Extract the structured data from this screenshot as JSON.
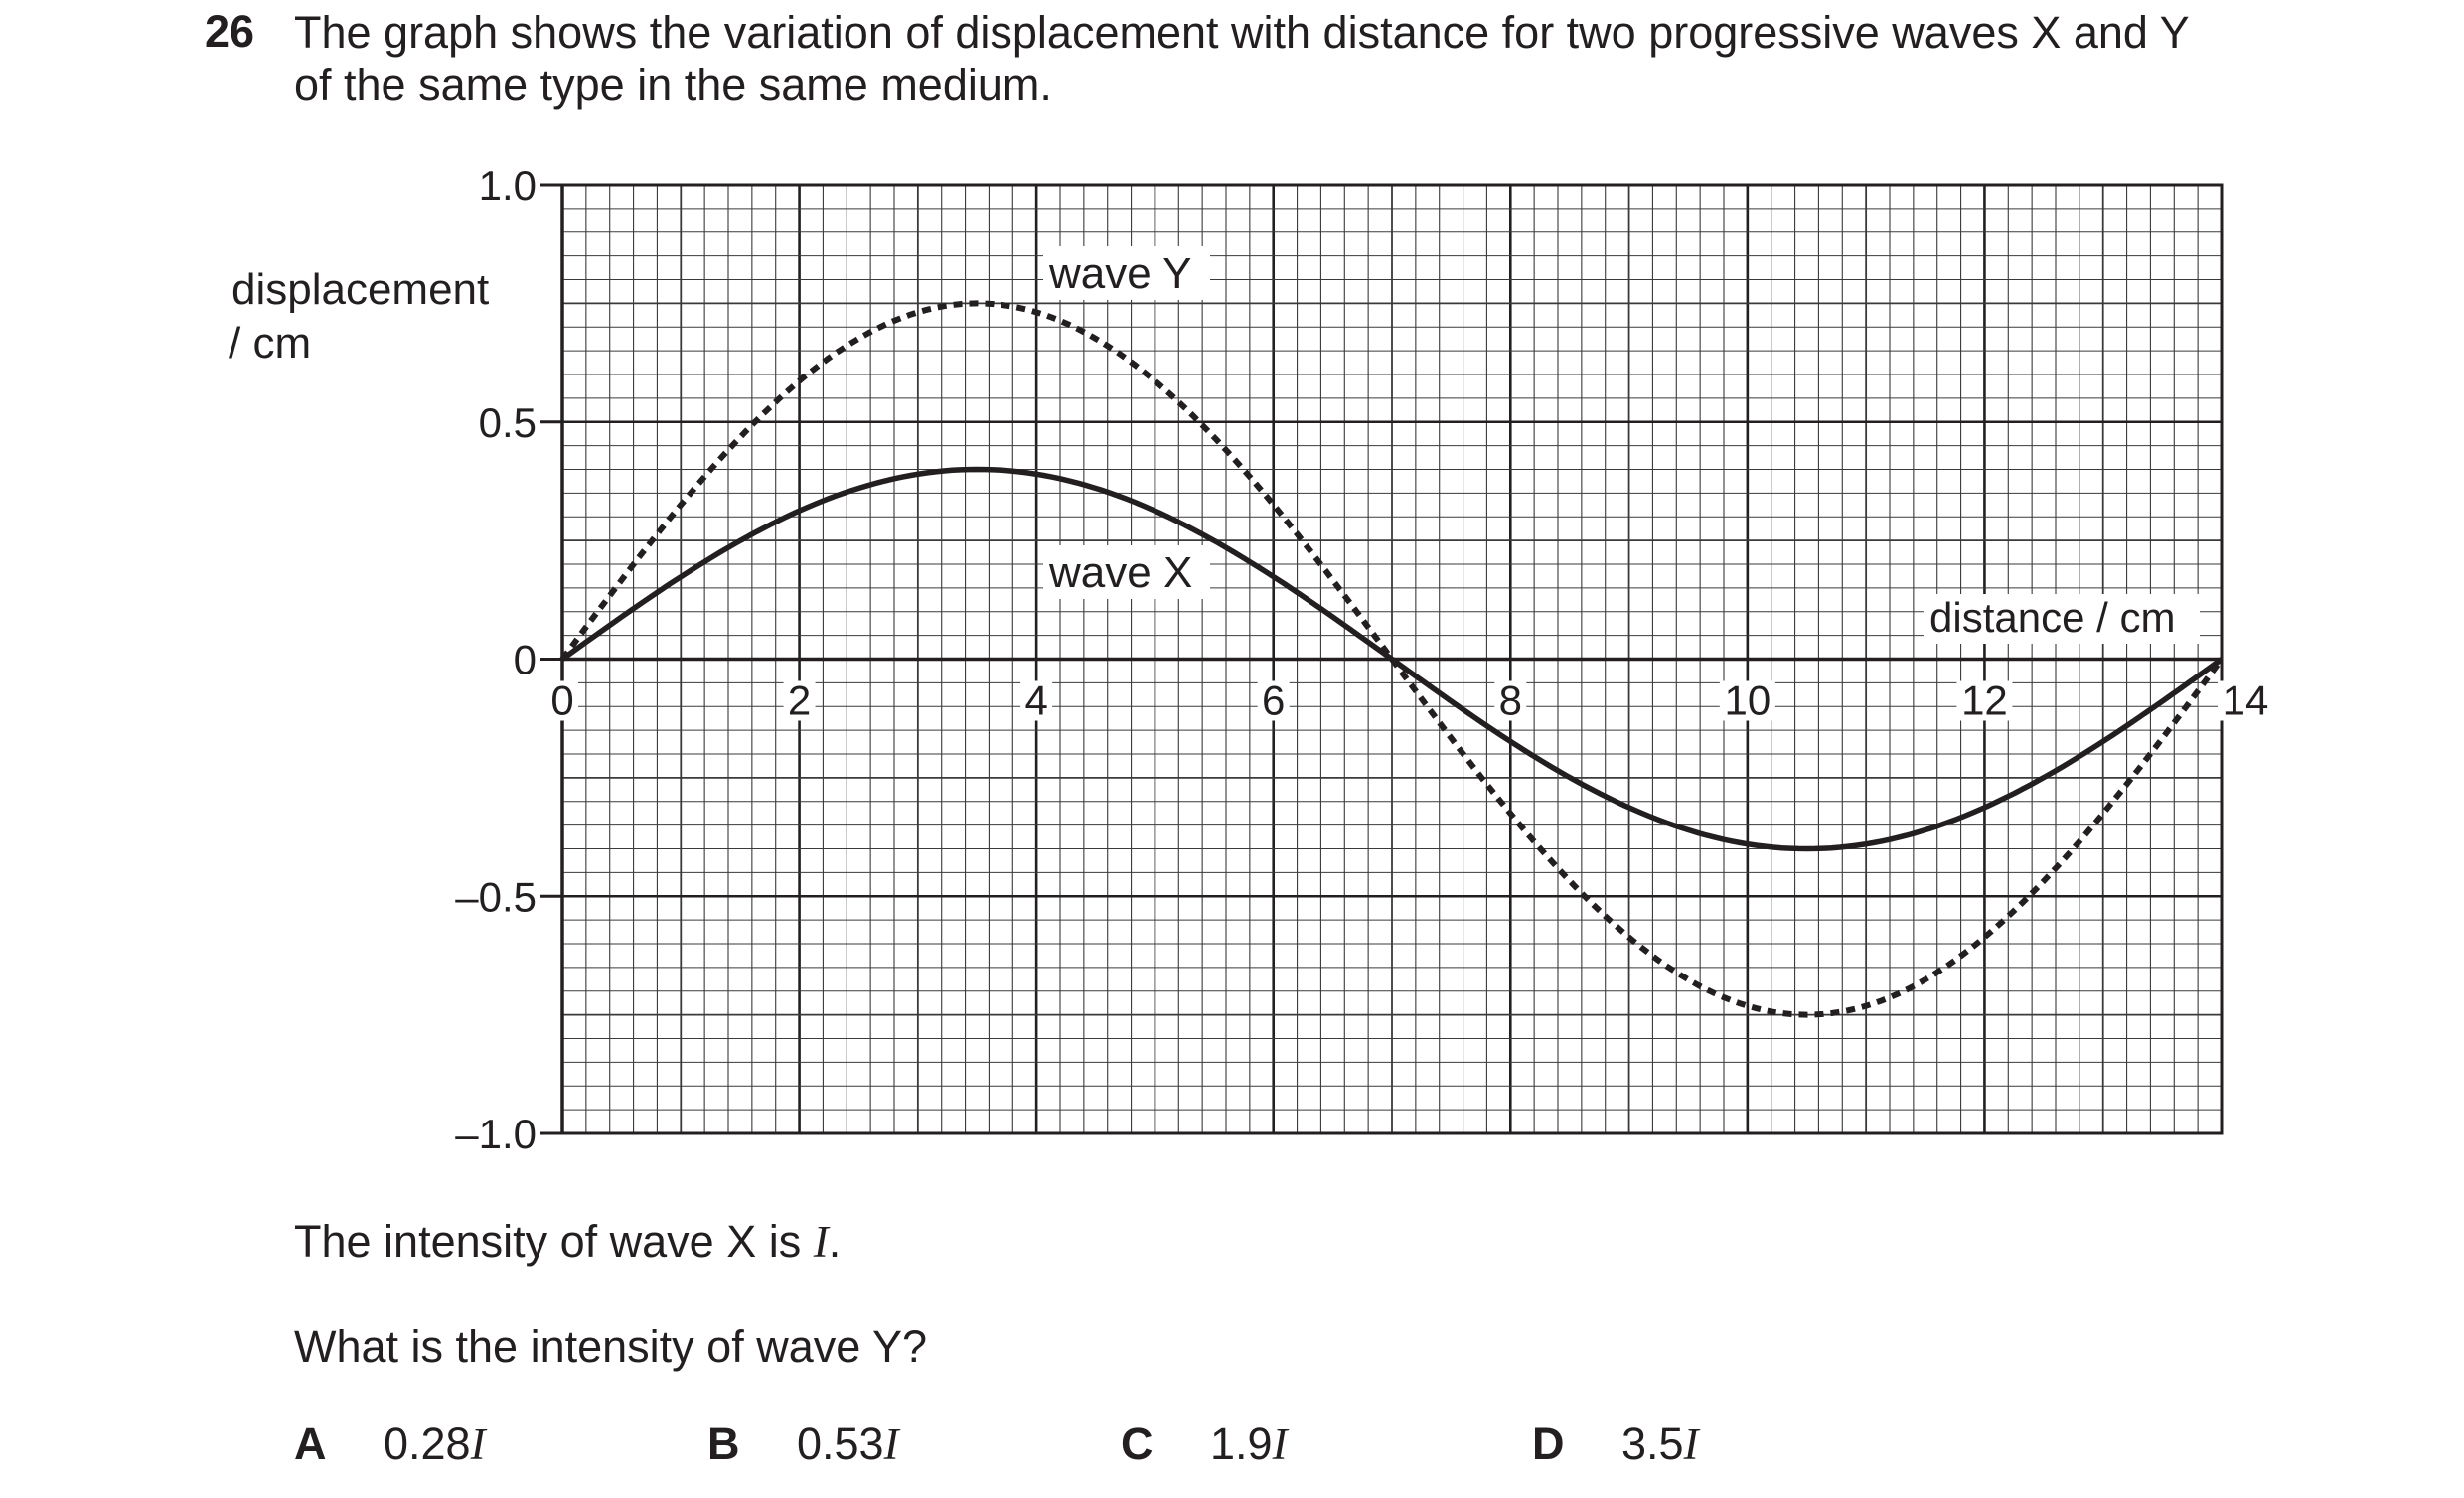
{
  "question": {
    "number": "26",
    "stem_line1": "The graph shows the variation of displacement with distance for two progressive waves X and Y",
    "stem_line2": "of the same type in the same medium."
  },
  "chart_data": {
    "type": "line",
    "ylabel_line1": "displacement",
    "ylabel_line2": "/ cm",
    "xlabel": "distance / cm",
    "xlim": [
      0,
      14
    ],
    "ylim": [
      -1.0,
      1.0
    ],
    "grid": true,
    "x_ticks": [
      "0",
      "2",
      "4",
      "6",
      "8",
      "10",
      "12",
      "14"
    ],
    "x_tick_values": [
      0,
      2,
      4,
      6,
      8,
      10,
      12,
      14
    ],
    "y_ticks": [
      "1.0",
      "0.5",
      "0",
      "–0.5",
      "–1.0"
    ],
    "y_tick_values": [
      1.0,
      0.5,
      0,
      -0.5,
      -1.0
    ],
    "series": [
      {
        "name": "wave X",
        "style": "solid",
        "x": [
          0,
          1,
          2,
          3,
          3.5,
          4,
          5,
          6,
          7,
          8,
          9,
          10,
          10.5,
          11,
          12,
          13,
          14
        ],
        "y": [
          0,
          0.17,
          0.31,
          0.39,
          0.4,
          0.39,
          0.31,
          0.17,
          0,
          -0.17,
          -0.31,
          -0.39,
          -0.4,
          -0.39,
          -0.31,
          -0.17,
          0
        ]
      },
      {
        "name": "wave Y",
        "style": "dashed",
        "x": [
          0,
          1,
          2,
          3,
          3.5,
          4,
          5,
          6,
          7,
          8,
          9,
          10,
          10.5,
          11,
          12,
          13,
          14
        ],
        "y": [
          0,
          0.33,
          0.59,
          0.73,
          0.75,
          0.73,
          0.59,
          0.33,
          0,
          -0.33,
          -0.59,
          -0.73,
          -0.75,
          -0.73,
          -0.59,
          -0.33,
          0
        ]
      }
    ],
    "annotations": [
      "wave Y",
      "wave X"
    ]
  },
  "text": {
    "intensity_pre": "The intensity of wave X is ",
    "intensity_symbol": "I",
    "intensity_post": ".",
    "question": "What is the intensity of wave Y?"
  },
  "options": [
    {
      "letter": "A",
      "value": "0.28",
      "symbol": "I"
    },
    {
      "letter": "B",
      "value": "0.53",
      "symbol": "I"
    },
    {
      "letter": "C",
      "value": "1.9",
      "symbol": "I"
    },
    {
      "letter": "D",
      "value": "3.5",
      "symbol": "I"
    }
  ]
}
